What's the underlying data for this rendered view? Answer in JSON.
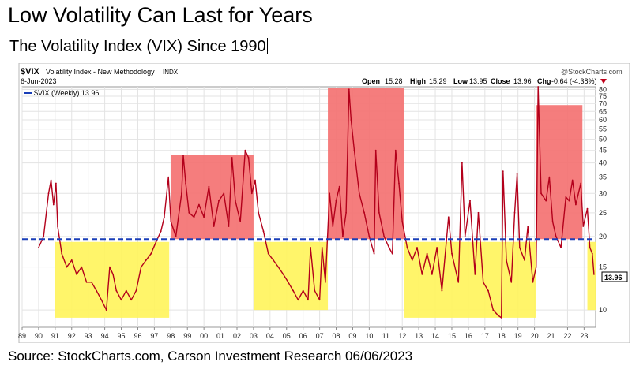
{
  "header": {
    "title": "Low Volatility Can Last for Years",
    "subtitle": "The Volatility Index (VIX) Since 1990"
  },
  "footer": {
    "source": "Source: StockCharts.com, Carson Investment Research 06/06/2023"
  },
  "chart_data": {
    "type": "line",
    "symbol": "$VIX",
    "symbol_desc": "Volatility Index - New Methodology",
    "symbol_tag": "INDX",
    "date": "6-Jun-2023",
    "brand": "@StockCharts.com",
    "ohlc": {
      "open_label": "Open",
      "open": "15.28",
      "high_label": "High",
      "high": "15.29",
      "low_label": "Low",
      "low": "13.95",
      "close_label": "Close",
      "close": "13.96",
      "chg_label": "Chg",
      "chg": "-0.64 (-4.38%)"
    },
    "legend": {
      "label": "$VIX (Weekly) 13.96",
      "position": "top-left"
    },
    "last_value_label": "13.96",
    "y_scale": "log",
    "ylim": [
      8.5,
      82
    ],
    "y_ticks": [
      10,
      15,
      20,
      25,
      30,
      35,
      40,
      45,
      50,
      55,
      60,
      65,
      70,
      75,
      80
    ],
    "x_ticks": [
      "89",
      "90",
      "91",
      "92",
      "93",
      "94",
      "95",
      "96",
      "97",
      "98",
      "99",
      "00",
      "01",
      "02",
      "03",
      "04",
      "05",
      "06",
      "07",
      "08",
      "09",
      "10",
      "11",
      "12",
      "13",
      "14",
      "15",
      "16",
      "17",
      "18",
      "19",
      "20",
      "21",
      "22",
      "23"
    ],
    "xlim": [
      1989.0,
      2023.7
    ],
    "reference_line": {
      "value": 19.5,
      "style": "dashed",
      "color": "#1a3fb8"
    },
    "grid": true,
    "regions": [
      {
        "x": [
          1998.0,
          2003.0
        ],
        "y": [
          19.5,
          43
        ],
        "color": "#f46f6f",
        "name": "high-1998-2003"
      },
      {
        "x": [
          2007.5,
          2012.1
        ],
        "y": [
          19.5,
          81
        ],
        "color": "#f46f6f",
        "name": "high-2007-2012"
      },
      {
        "x": [
          2020.1,
          2022.9
        ],
        "y": [
          19.5,
          69
        ],
        "color": "#f46f6f",
        "name": "high-2020-2022"
      },
      {
        "x": [
          1991.0,
          1997.9
        ],
        "y": [
          9.3,
          19.0
        ],
        "color": "#fff45a",
        "name": "low-1991-1997"
      },
      {
        "x": [
          2003.0,
          2007.5
        ],
        "y": [
          10.0,
          19.0
        ],
        "color": "#fff45a",
        "name": "low-2003-2007"
      },
      {
        "x": [
          2012.1,
          2020.1
        ],
        "y": [
          9.3,
          19.0
        ],
        "color": "#fff45a",
        "name": "low-2012-2020"
      },
      {
        "x": [
          2023.2,
          2023.7
        ],
        "y": [
          10.0,
          19.0
        ],
        "color": "#fff45a",
        "name": "low-2023"
      }
    ],
    "series": [
      {
        "color": "#b3001b",
        "points": [
          [
            1990.0,
            18
          ],
          [
            1990.3,
            20
          ],
          [
            1990.6,
            30
          ],
          [
            1990.75,
            34
          ],
          [
            1990.9,
            27
          ],
          [
            1991.05,
            33
          ],
          [
            1991.15,
            22
          ],
          [
            1991.4,
            17
          ],
          [
            1991.7,
            15
          ],
          [
            1992.0,
            16
          ],
          [
            1992.3,
            14
          ],
          [
            1992.6,
            15
          ],
          [
            1992.9,
            13
          ],
          [
            1993.2,
            13
          ],
          [
            1993.5,
            12
          ],
          [
            1993.8,
            11
          ],
          [
            1994.1,
            10
          ],
          [
            1994.3,
            15
          ],
          [
            1994.5,
            14
          ],
          [
            1994.7,
            12
          ],
          [
            1995.0,
            11
          ],
          [
            1995.3,
            12
          ],
          [
            1995.6,
            11
          ],
          [
            1995.9,
            12
          ],
          [
            1996.2,
            15
          ],
          [
            1996.5,
            16
          ],
          [
            1996.8,
            17
          ],
          [
            1997.1,
            19
          ],
          [
            1997.4,
            21
          ],
          [
            1997.6,
            24
          ],
          [
            1997.85,
            35
          ],
          [
            1998.0,
            23
          ],
          [
            1998.3,
            20
          ],
          [
            1998.65,
            30
          ],
          [
            1998.75,
            43
          ],
          [
            1998.9,
            33
          ],
          [
            1999.1,
            25
          ],
          [
            1999.4,
            24
          ],
          [
            1999.7,
            27
          ],
          [
            2000.0,
            24
          ],
          [
            2000.3,
            32
          ],
          [
            2000.6,
            22
          ],
          [
            2000.9,
            28
          ],
          [
            2001.2,
            30
          ],
          [
            2001.5,
            22
          ],
          [
            2001.7,
            42
          ],
          [
            2001.9,
            28
          ],
          [
            2002.2,
            23
          ],
          [
            2002.5,
            45
          ],
          [
            2002.7,
            42
          ],
          [
            2002.9,
            30
          ],
          [
            2003.1,
            34
          ],
          [
            2003.3,
            25
          ],
          [
            2003.6,
            21
          ],
          [
            2003.9,
            17
          ],
          [
            2004.2,
            16
          ],
          [
            2004.5,
            15
          ],
          [
            2004.8,
            14
          ],
          [
            2005.1,
            13
          ],
          [
            2005.4,
            12
          ],
          [
            2005.7,
            11
          ],
          [
            2006.0,
            12
          ],
          [
            2006.3,
            11
          ],
          [
            2006.45,
            18
          ],
          [
            2006.7,
            12
          ],
          [
            2007.0,
            11
          ],
          [
            2007.15,
            18
          ],
          [
            2007.35,
            13
          ],
          [
            2007.6,
            30
          ],
          [
            2007.8,
            22
          ],
          [
            2008.0,
            28
          ],
          [
            2008.2,
            32
          ],
          [
            2008.4,
            20
          ],
          [
            2008.6,
            25
          ],
          [
            2008.78,
            80
          ],
          [
            2008.9,
            60
          ],
          [
            2009.1,
            45
          ],
          [
            2009.4,
            30
          ],
          [
            2009.7,
            25
          ],
          [
            2010.0,
            20
          ],
          [
            2010.3,
            17
          ],
          [
            2010.4,
            45
          ],
          [
            2010.6,
            25
          ],
          [
            2010.9,
            20
          ],
          [
            2011.2,
            18
          ],
          [
            2011.4,
            17
          ],
          [
            2011.6,
            45
          ],
          [
            2011.8,
            33
          ],
          [
            2012.0,
            23
          ],
          [
            2012.3,
            18
          ],
          [
            2012.6,
            16
          ],
          [
            2012.9,
            18
          ],
          [
            2013.2,
            14
          ],
          [
            2013.5,
            17
          ],
          [
            2013.8,
            14
          ],
          [
            2014.1,
            18
          ],
          [
            2014.4,
            12
          ],
          [
            2014.8,
            24
          ],
          [
            2015.0,
            17
          ],
          [
            2015.4,
            13
          ],
          [
            2015.62,
            40
          ],
          [
            2015.8,
            20
          ],
          [
            2016.1,
            28
          ],
          [
            2016.4,
            14
          ],
          [
            2016.6,
            25
          ],
          [
            2016.9,
            13
          ],
          [
            2017.2,
            12
          ],
          [
            2017.5,
            10
          ],
          [
            2017.8,
            9.5
          ],
          [
            2018.0,
            9.3
          ],
          [
            2018.1,
            37
          ],
          [
            2018.3,
            16
          ],
          [
            2018.6,
            13
          ],
          [
            2018.8,
            25
          ],
          [
            2018.95,
            36
          ],
          [
            2019.1,
            18
          ],
          [
            2019.4,
            16
          ],
          [
            2019.6,
            22
          ],
          [
            2019.9,
            13
          ],
          [
            2020.1,
            15
          ],
          [
            2020.22,
            82
          ],
          [
            2020.4,
            30
          ],
          [
            2020.7,
            28
          ],
          [
            2020.9,
            35
          ],
          [
            2021.1,
            23
          ],
          [
            2021.3,
            20
          ],
          [
            2021.6,
            18
          ],
          [
            2021.9,
            29
          ],
          [
            2022.1,
            28
          ],
          [
            2022.3,
            34
          ],
          [
            2022.5,
            27
          ],
          [
            2022.8,
            33
          ],
          [
            2022.95,
            22
          ],
          [
            2023.2,
            26
          ],
          [
            2023.35,
            18
          ],
          [
            2023.5,
            17
          ],
          [
            2023.6,
            14
          ]
        ]
      }
    ]
  }
}
